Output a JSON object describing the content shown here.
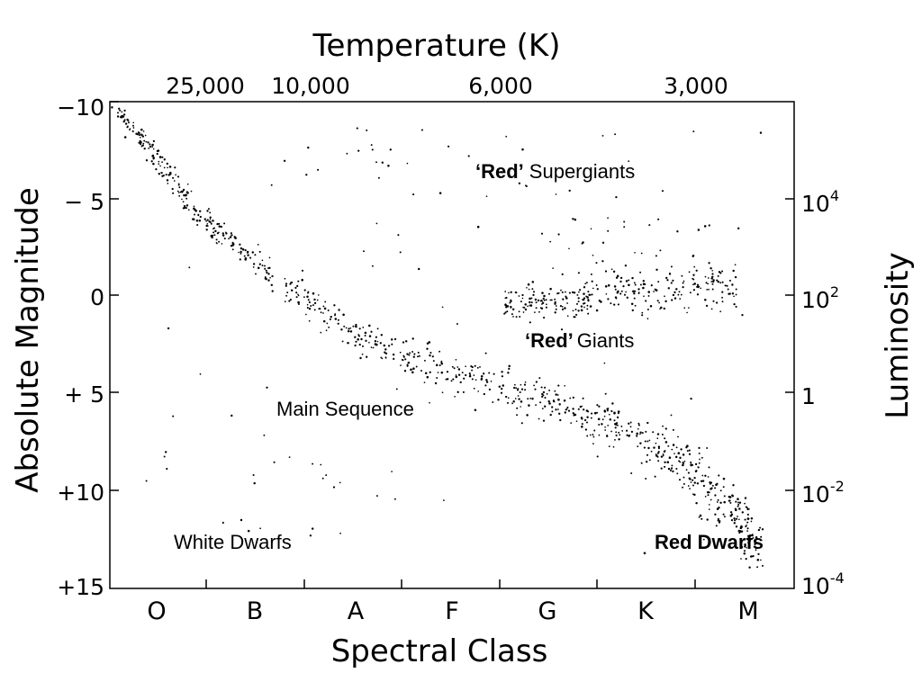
{
  "chart_data": {
    "type": "scatter",
    "title": "Temperature (K)",
    "xlabel": "Spectral Class",
    "ylabel": "Absolute Magnitude",
    "y2label": "Luminosity",
    "ylim": [
      15,
      -10
    ],
    "y_reversed": true,
    "spectral_classes": [
      "O",
      "B",
      "A",
      "F",
      "G",
      "K",
      "M"
    ],
    "top_ticks": [
      "25,000",
      "10,000",
      "6,000",
      "3,000"
    ],
    "y_ticks": [
      {
        "value": -10,
        "label": "−10"
      },
      {
        "value": -5,
        "label": "− 5"
      },
      {
        "value": 0,
        "label": "0"
      },
      {
        "value": 5,
        "label": "+ 5"
      },
      {
        "value": 10,
        "label": "+10"
      },
      {
        "value": 15,
        "label": "+15"
      }
    ],
    "y2_ticks": [
      {
        "magnitude": -5,
        "base": "10",
        "exp": "4"
      },
      {
        "magnitude": 0,
        "base": "10",
        "exp": "2"
      },
      {
        "magnitude": 5,
        "base": "1",
        "exp": ""
      },
      {
        "magnitude": 10,
        "base": "10",
        "exp": "-2"
      },
      {
        "magnitude": 15,
        "base": "10",
        "exp": "-4"
      }
    ],
    "annotations": {
      "supergiants_bold": "‘Red’",
      "supergiants_rest": "Supergiants",
      "giants_bold": "‘Red’",
      "giants_rest": "Giants",
      "main_sequence": "Main Sequence",
      "white_dwarfs": "White Dwarfs",
      "red_dwarfs": "Red Dwarfs"
    },
    "grid": false,
    "legend": "none",
    "point_color": "#000000"
  }
}
